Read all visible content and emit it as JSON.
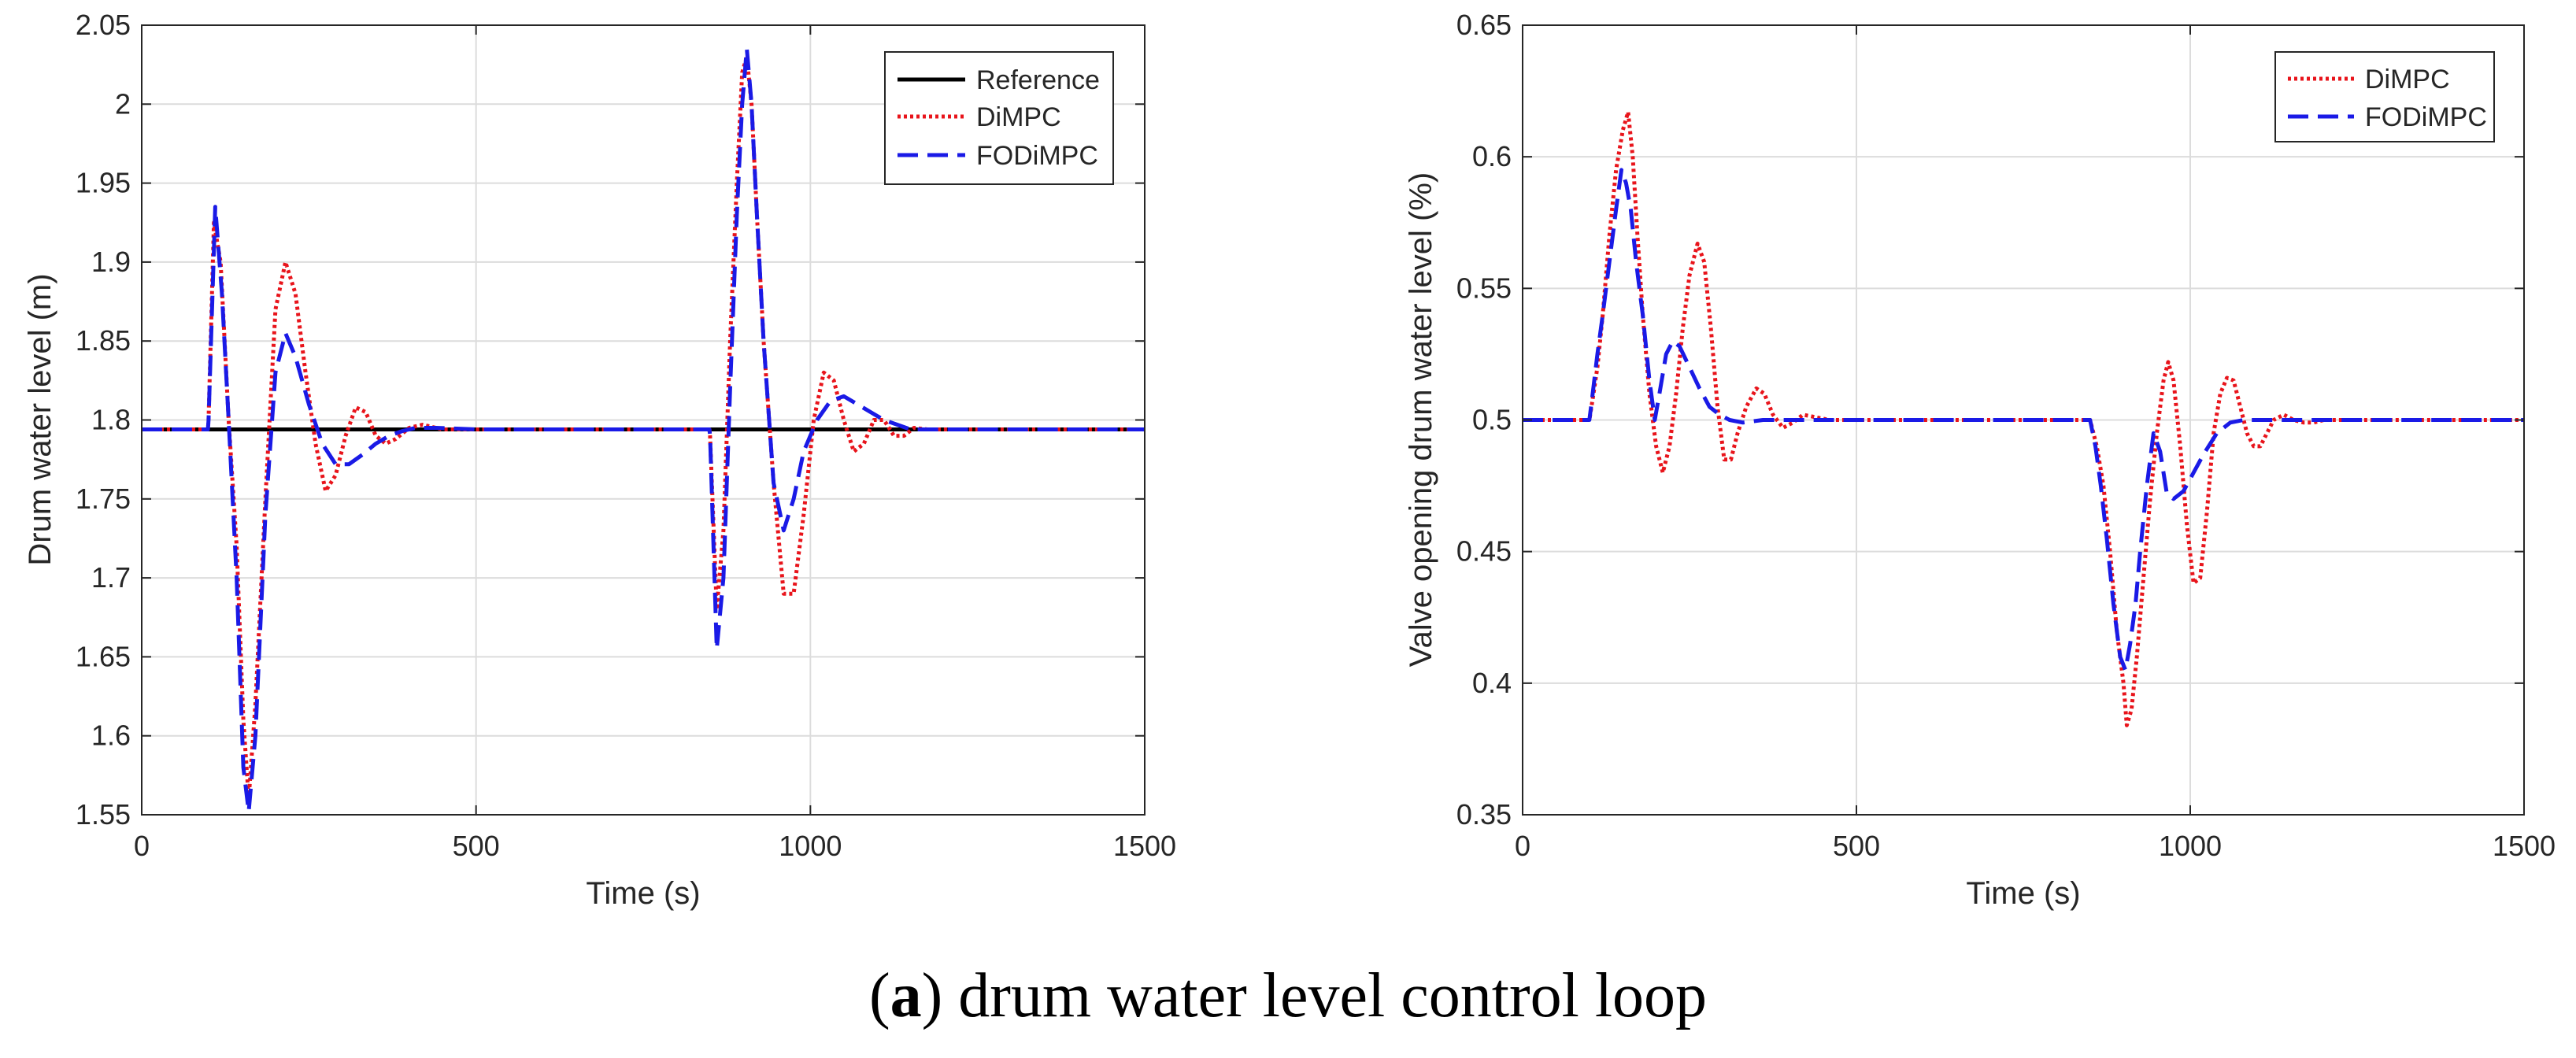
{
  "caption": {
    "open": "(",
    "letter": "a",
    "text": ") drum water level control loop"
  },
  "colors": {
    "reference": "#000000",
    "dimpc": "#e8141b",
    "fodimpc": "#1a1ae6",
    "grid": "#dcdcdc",
    "axis": "#262626"
  },
  "chart_data": [
    {
      "type": "line",
      "title": "",
      "xlabel": "Time (s)",
      "ylabel": "Drum water level (m)",
      "xlim": [
        0,
        1500
      ],
      "ylim": [
        1.55,
        2.05
      ],
      "xticks": [
        "0",
        "500",
        "1000",
        "1500"
      ],
      "yticks": [
        "1.55",
        "1.6",
        "1.65",
        "1.7",
        "1.75",
        "1.8",
        "1.85",
        "1.9",
        "1.95",
        "2",
        "2.05"
      ],
      "grid": true,
      "legend_position": "top-right",
      "series": [
        {
          "name": "Reference",
          "style": "solid",
          "color": "#000000",
          "x": [
            0,
            1500
          ],
          "y": [
            1.794,
            1.794
          ]
        },
        {
          "name": "DiMPC",
          "style": "dotted",
          "color": "#e8141b",
          "x": [
            0,
            99,
            100,
            108,
            118,
            130,
            142,
            152,
            160,
            170,
            185,
            200,
            215,
            230,
            245,
            260,
            275,
            290,
            305,
            320,
            335,
            350,
            365,
            380,
            400,
            420,
            450,
            500,
            849,
            850,
            860,
            870,
            880,
            890,
            898,
            905,
            912,
            920,
            930,
            945,
            960,
            975,
            990,
            1005,
            1020,
            1035,
            1050,
            1065,
            1080,
            1095,
            1110,
            1125,
            1140,
            1155,
            1175,
            1200,
            1250,
            1500
          ],
          "y": [
            1.794,
            1.794,
            1.8,
            1.925,
            1.9,
            1.8,
            1.72,
            1.61,
            1.56,
            1.62,
            1.75,
            1.87,
            1.9,
            1.88,
            1.83,
            1.785,
            1.755,
            1.765,
            1.79,
            1.808,
            1.805,
            1.79,
            1.785,
            1.788,
            1.795,
            1.797,
            1.794,
            1.794,
            1.794,
            1.79,
            1.68,
            1.73,
            1.85,
            1.95,
            2.02,
            2.03,
            2.0,
            1.93,
            1.85,
            1.76,
            1.69,
            1.69,
            1.74,
            1.8,
            1.83,
            1.825,
            1.8,
            1.78,
            1.785,
            1.8,
            1.8,
            1.79,
            1.79,
            1.795,
            1.794,
            1.794,
            1.794,
            1.794
          ]
        },
        {
          "name": "FODiMPC",
          "style": "dashed",
          "color": "#1a1ae6",
          "x": [
            0,
            99,
            100,
            110,
            120,
            130,
            142,
            152,
            160,
            170,
            185,
            200,
            215,
            230,
            250,
            270,
            290,
            310,
            330,
            350,
            370,
            390,
            410,
            440,
            500,
            849,
            850,
            860,
            870,
            880,
            890,
            898,
            905,
            912,
            920,
            930,
            945,
            960,
            975,
            990,
            1010,
            1030,
            1050,
            1070,
            1090,
            1110,
            1130,
            1150,
            1170,
            1200,
            1500
          ],
          "y": [
            1.794,
            1.794,
            1.8,
            1.935,
            1.88,
            1.8,
            1.7,
            1.58,
            1.552,
            1.6,
            1.74,
            1.83,
            1.855,
            1.84,
            1.81,
            1.785,
            1.772,
            1.772,
            1.778,
            1.785,
            1.79,
            1.793,
            1.795,
            1.795,
            1.794,
            1.794,
            1.79,
            1.655,
            1.7,
            1.82,
            1.93,
            2.0,
            2.035,
            2.0,
            1.93,
            1.85,
            1.76,
            1.73,
            1.75,
            1.78,
            1.8,
            1.812,
            1.815,
            1.81,
            1.805,
            1.8,
            1.797,
            1.794,
            1.794,
            1.794,
            1.794
          ]
        }
      ]
    },
    {
      "type": "line",
      "title": "",
      "xlabel": "Time (s)",
      "ylabel": "Valve opening drum water level (%)",
      "xlim": [
        0,
        1500
      ],
      "ylim": [
        0.35,
        0.65
      ],
      "xticks": [
        "0",
        "500",
        "1000",
        "1500"
      ],
      "yticks": [
        "0.35",
        "0.4",
        "0.45",
        "0.5",
        "0.55",
        "0.6",
        "0.65"
      ],
      "grid": true,
      "legend_position": "top-right",
      "series": [
        {
          "name": "DiMPC",
          "style": "dotted",
          "color": "#e8141b",
          "x": [
            0,
            100,
            105,
            112,
            120,
            130,
            140,
            150,
            158,
            165,
            172,
            180,
            190,
            200,
            210,
            220,
            230,
            240,
            250,
            262,
            272,
            282,
            292,
            302,
            312,
            322,
            335,
            350,
            362,
            375,
            390,
            405,
            420,
            440,
            460,
            480,
            500,
            850,
            860,
            870,
            880,
            890,
            900,
            905,
            912,
            920,
            930,
            940,
            950,
            960,
            967,
            975,
            985,
            995,
            1005,
            1015,
            1025,
            1035,
            1045,
            1055,
            1065,
            1075,
            1085,
            1095,
            1105,
            1115,
            1125,
            1140,
            1155,
            1170,
            1185,
            1200,
            1220,
            1500
          ],
          "y": [
            0.5,
            0.5,
            0.508,
            0.52,
            0.54,
            0.57,
            0.595,
            0.61,
            0.617,
            0.6,
            0.57,
            0.54,
            0.51,
            0.49,
            0.48,
            0.49,
            0.51,
            0.535,
            0.555,
            0.567,
            0.56,
            0.535,
            0.505,
            0.485,
            0.485,
            0.495,
            0.505,
            0.512,
            0.51,
            0.502,
            0.497,
            0.499,
            0.502,
            0.501,
            0.5,
            0.5,
            0.5,
            0.5,
            0.49,
            0.475,
            0.45,
            0.42,
            0.4,
            0.384,
            0.39,
            0.41,
            0.44,
            0.47,
            0.495,
            0.515,
            0.522,
            0.515,
            0.49,
            0.46,
            0.438,
            0.44,
            0.465,
            0.495,
            0.51,
            0.516,
            0.515,
            0.505,
            0.495,
            0.49,
            0.49,
            0.495,
            0.5,
            0.502,
            0.5,
            0.499,
            0.499,
            0.5,
            0.5,
            0.5
          ]
        },
        {
          "name": "FODiMPC",
          "style": "dashed",
          "color": "#1a1ae6",
          "x": [
            0,
            100,
            105,
            112,
            120,
            130,
            140,
            148,
            155,
            162,
            170,
            180,
            190,
            198,
            205,
            215,
            225,
            235,
            250,
            265,
            280,
            295,
            310,
            330,
            360,
            400,
            500,
            850,
            858,
            866,
            875,
            885,
            895,
            903,
            910,
            918,
            925,
            935,
            945,
            955,
            965,
            975,
            990,
            1005,
            1020,
            1040,
            1060,
            1080,
            1100,
            1130,
            1500
          ],
          "y": [
            0.5,
            0.5,
            0.51,
            0.525,
            0.54,
            0.56,
            0.58,
            0.595,
            0.59,
            0.58,
            0.56,
            0.54,
            0.515,
            0.5,
            0.51,
            0.525,
            0.53,
            0.528,
            0.52,
            0.512,
            0.505,
            0.502,
            0.5,
            0.499,
            0.5,
            0.5,
            0.5,
            0.5,
            0.49,
            0.475,
            0.455,
            0.43,
            0.41,
            0.405,
            0.415,
            0.43,
            0.45,
            0.475,
            0.495,
            0.488,
            0.472,
            0.47,
            0.473,
            0.48,
            0.487,
            0.495,
            0.499,
            0.5,
            0.5,
            0.5,
            0.5
          ]
        }
      ]
    }
  ]
}
